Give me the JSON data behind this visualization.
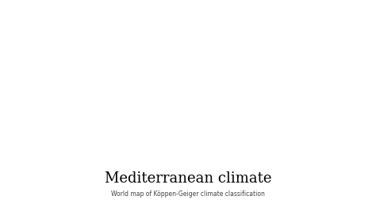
{
  "title": "Mediterranean climate",
  "subtitle": "World map of Köppen-Geiger climate classification",
  "title_fontsize": 13,
  "subtitle_fontsize": 5.5,
  "background_color": "#ffffff",
  "ocean_color": "#ffffff",
  "land_color": "#808080",
  "med_color": "#ffff00",
  "border_color": "#d0d0d0",
  "fig_width": 4.74,
  "fig_height": 2.53,
  "dpi": 100
}
